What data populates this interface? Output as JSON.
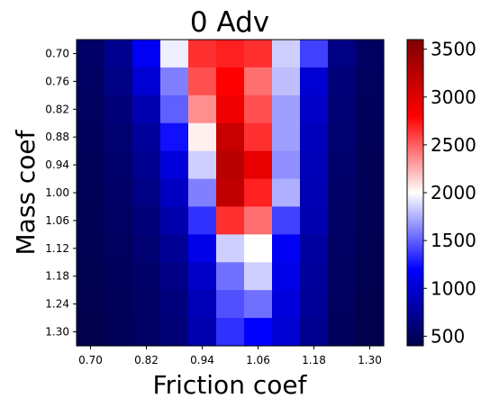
{
  "chart_data": {
    "type": "heatmap",
    "title": "0 Adv",
    "xlabel": "Friction coef",
    "ylabel": "Mass coef",
    "x_tick_labels": [
      "0.70",
      "0.82",
      "0.94",
      "1.06",
      "1.18",
      "1.30"
    ],
    "y_tick_labels": [
      "0.70",
      "0.76",
      "0.82",
      "0.88",
      "0.94",
      "1.00",
      "1.06",
      "1.12",
      "1.18",
      "1.24",
      "1.30"
    ],
    "x_values": [
      0.7,
      0.76,
      0.82,
      0.88,
      0.94,
      1.0,
      1.06,
      1.12,
      1.18,
      1.24,
      1.3
    ],
    "y_values": [
      0.7,
      0.76,
      0.82,
      0.88,
      0.94,
      1.0,
      1.06,
      1.12,
      1.18,
      1.24,
      1.3
    ],
    "values": [
      [
        520,
        700,
        1150,
        1950,
        2650,
        2700,
        2650,
        1850,
        1400,
        650,
        500
      ],
      [
        500,
        650,
        1000,
        1600,
        2550,
        2800,
        2450,
        1800,
        1000,
        600,
        480
      ],
      [
        480,
        600,
        850,
        1500,
        2350,
        2900,
        2550,
        1700,
        950,
        580,
        470
      ],
      [
        470,
        560,
        750,
        1250,
        2050,
        3150,
        2650,
        1700,
        900,
        560,
        460
      ],
      [
        460,
        540,
        700,
        1050,
        1850,
        3250,
        2950,
        1650,
        880,
        540,
        450
      ],
      [
        450,
        520,
        650,
        930,
        1600,
        3200,
        2700,
        1750,
        870,
        520,
        450
      ],
      [
        440,
        500,
        600,
        820,
        1350,
        2650,
        2450,
        1400,
        850,
        510,
        440
      ],
      [
        430,
        480,
        560,
        720,
        1100,
        1850,
        2000,
        1150,
        780,
        500,
        430
      ],
      [
        420,
        470,
        530,
        660,
        960,
        1550,
        1850,
        1100,
        750,
        490,
        420
      ],
      [
        410,
        460,
        510,
        620,
        880,
        1450,
        1550,
        1050,
        730,
        480,
        410
      ],
      [
        400,
        450,
        500,
        590,
        840,
        1350,
        1200,
        1000,
        700,
        470,
        400
      ]
    ],
    "colormap": "seismic",
    "vmin": 400,
    "vmax": 3600,
    "colorbar_ticks": [
      500,
      1000,
      1500,
      2000,
      2500,
      3000,
      3500
    ],
    "grid": false
  }
}
